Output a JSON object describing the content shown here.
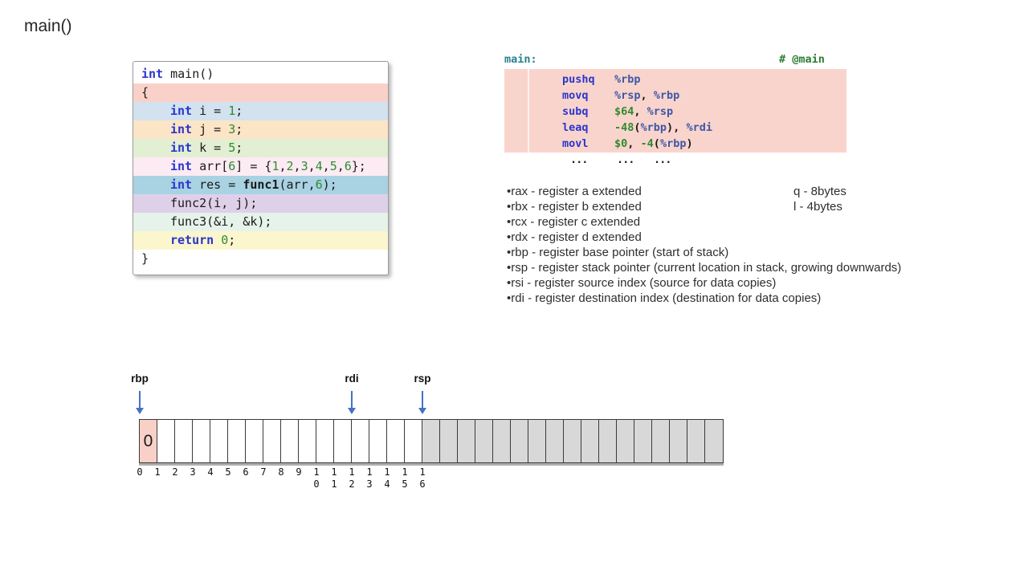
{
  "title": "main()",
  "colors": {
    "keyword_blue": "#2936cc",
    "number_green": "#2e8b2e",
    "register_blue": "#3d57a6",
    "asm_label_teal": "#26808f",
    "comment_green": "#2e7d32",
    "asm_block_bg": "#f9d4cc",
    "pointer_arrow": "#4472c4",
    "cell_highlight": "#f8d0c8",
    "cell_white": "#ffffff",
    "cell_gray": "#d8d8d8"
  },
  "c_code": {
    "lines": [
      {
        "bg": "#ffffff",
        "indent": 0,
        "tokens": [
          {
            "t": "int",
            "c": "kw"
          },
          {
            "t": " main()",
            "c": "plain"
          }
        ]
      },
      {
        "bg": "#f9d1c9",
        "indent": 0,
        "tokens": [
          {
            "t": "{",
            "c": "plain"
          }
        ]
      },
      {
        "bg": "#d2e2ef",
        "indent": 1,
        "tokens": [
          {
            "t": "int",
            "c": "kw"
          },
          {
            "t": " i = ",
            "c": "plain"
          },
          {
            "t": "1",
            "c": "num"
          },
          {
            "t": ";",
            "c": "plain"
          }
        ]
      },
      {
        "bg": "#fce5c7",
        "indent": 1,
        "tokens": [
          {
            "t": "int",
            "c": "kw"
          },
          {
            "t": " j = ",
            "c": "plain"
          },
          {
            "t": "3",
            "c": "num"
          },
          {
            "t": ";",
            "c": "plain"
          }
        ]
      },
      {
        "bg": "#e2efd2",
        "indent": 1,
        "tokens": [
          {
            "t": "int",
            "c": "kw"
          },
          {
            "t": " k = ",
            "c": "plain"
          },
          {
            "t": "5",
            "c": "num"
          },
          {
            "t": ";",
            "c": "plain"
          }
        ]
      },
      {
        "bg": "#fcebf3",
        "indent": 1,
        "tokens": [
          {
            "t": "int",
            "c": "kw"
          },
          {
            "t": " arr[",
            "c": "plain"
          },
          {
            "t": "6",
            "c": "num"
          },
          {
            "t": "] = {",
            "c": "plain"
          },
          {
            "t": "1",
            "c": "num"
          },
          {
            "t": ",",
            "c": "plain"
          },
          {
            "t": "2",
            "c": "num"
          },
          {
            "t": ",",
            "c": "plain"
          },
          {
            "t": "3",
            "c": "num"
          },
          {
            "t": ",",
            "c": "plain"
          },
          {
            "t": "4",
            "c": "num"
          },
          {
            "t": ",",
            "c": "plain"
          },
          {
            "t": "5",
            "c": "num"
          },
          {
            "t": ",",
            "c": "plain"
          },
          {
            "t": "6",
            "c": "num"
          },
          {
            "t": "};",
            "c": "plain"
          }
        ]
      },
      {
        "bg": "#a9d2e3",
        "indent": 1,
        "tokens": [
          {
            "t": "int",
            "c": "kw"
          },
          {
            "t": " res = ",
            "c": "plain"
          },
          {
            "t": "func1",
            "c": "bold"
          },
          {
            "t": "(arr,",
            "c": "plain"
          },
          {
            "t": "6",
            "c": "num"
          },
          {
            "t": ");",
            "c": "plain"
          }
        ]
      },
      {
        "bg": "#dfd0e9",
        "indent": 1,
        "tokens": [
          {
            "t": "func2(i, j);",
            "c": "plain"
          }
        ]
      },
      {
        "bg": "#e6f3ea",
        "indent": 1,
        "tokens": [
          {
            "t": "func3(&i, &k);",
            "c": "plain"
          }
        ]
      },
      {
        "bg": "#fcf6ce",
        "indent": 1,
        "tokens": [
          {
            "t": "return",
            "c": "kw"
          },
          {
            "t": " ",
            "c": "plain"
          },
          {
            "t": "0",
            "c": "num"
          },
          {
            "t": ";",
            "c": "plain"
          }
        ]
      },
      {
        "bg": "#ffffff",
        "indent": 0,
        "tokens": [
          {
            "t": "}",
            "c": "plain"
          }
        ]
      }
    ]
  },
  "asm": {
    "header_label": "main:",
    "header_comment": "# @main",
    "lines": [
      {
        "m": "pushq",
        "ops": [
          {
            "t": "%rbp",
            "c": "reg"
          }
        ]
      },
      {
        "m": "movq",
        "ops": [
          {
            "t": "%rsp",
            "c": "reg"
          },
          {
            "t": ", ",
            "c": "plain"
          },
          {
            "t": "%rbp",
            "c": "reg"
          }
        ]
      },
      {
        "m": "subq",
        "ops": [
          {
            "t": "$64",
            "c": "num"
          },
          {
            "t": ", ",
            "c": "plain"
          },
          {
            "t": "%rsp",
            "c": "reg"
          }
        ]
      },
      {
        "m": "leaq",
        "ops": [
          {
            "t": "-48",
            "c": "num"
          },
          {
            "t": "(",
            "c": "plain"
          },
          {
            "t": "%rbp",
            "c": "reg"
          },
          {
            "t": "), ",
            "c": "plain"
          },
          {
            "t": "%rdi",
            "c": "reg"
          }
        ]
      },
      {
        "m": "movl",
        "ops": [
          {
            "t": "$0",
            "c": "num"
          },
          {
            "t": ", ",
            "c": "plain"
          },
          {
            "t": "-4",
            "c": "num"
          },
          {
            "t": "(",
            "c": "plain"
          },
          {
            "t": "%rbp",
            "c": "reg"
          },
          {
            "t": ")",
            "c": "plain"
          }
        ]
      }
    ],
    "ellipses": [
      "...",
      "...",
      "..."
    ]
  },
  "registers": {
    "bullet": "•",
    "items": [
      "rax - register a extended",
      "rbx - register b extended",
      "rcx - register c extended",
      "rdx - register d extended",
      "rbp - register base pointer (start of stack)",
      "rsp - register stack pointer (current location in stack, growing downwards)",
      "rsi - register source index (source for data copies)",
      "rdi - register destination index (destination for data copies)"
    ],
    "notes": [
      "q - 8bytes",
      "l - 4bytes"
    ]
  },
  "stack": {
    "num_cells": 33,
    "first_gray_index": 16,
    "cell0_value": "0",
    "ticks": [
      "0",
      "1",
      "2",
      "3",
      "4",
      "5",
      "6",
      "7",
      "8",
      "9",
      "10",
      "11",
      "12",
      "13",
      "14",
      "15",
      "16"
    ],
    "pointers": [
      {
        "label": "rbp",
        "cell": 0
      },
      {
        "label": "rdi",
        "cell": 12
      },
      {
        "label": "rsp",
        "cell": 16
      }
    ]
  }
}
